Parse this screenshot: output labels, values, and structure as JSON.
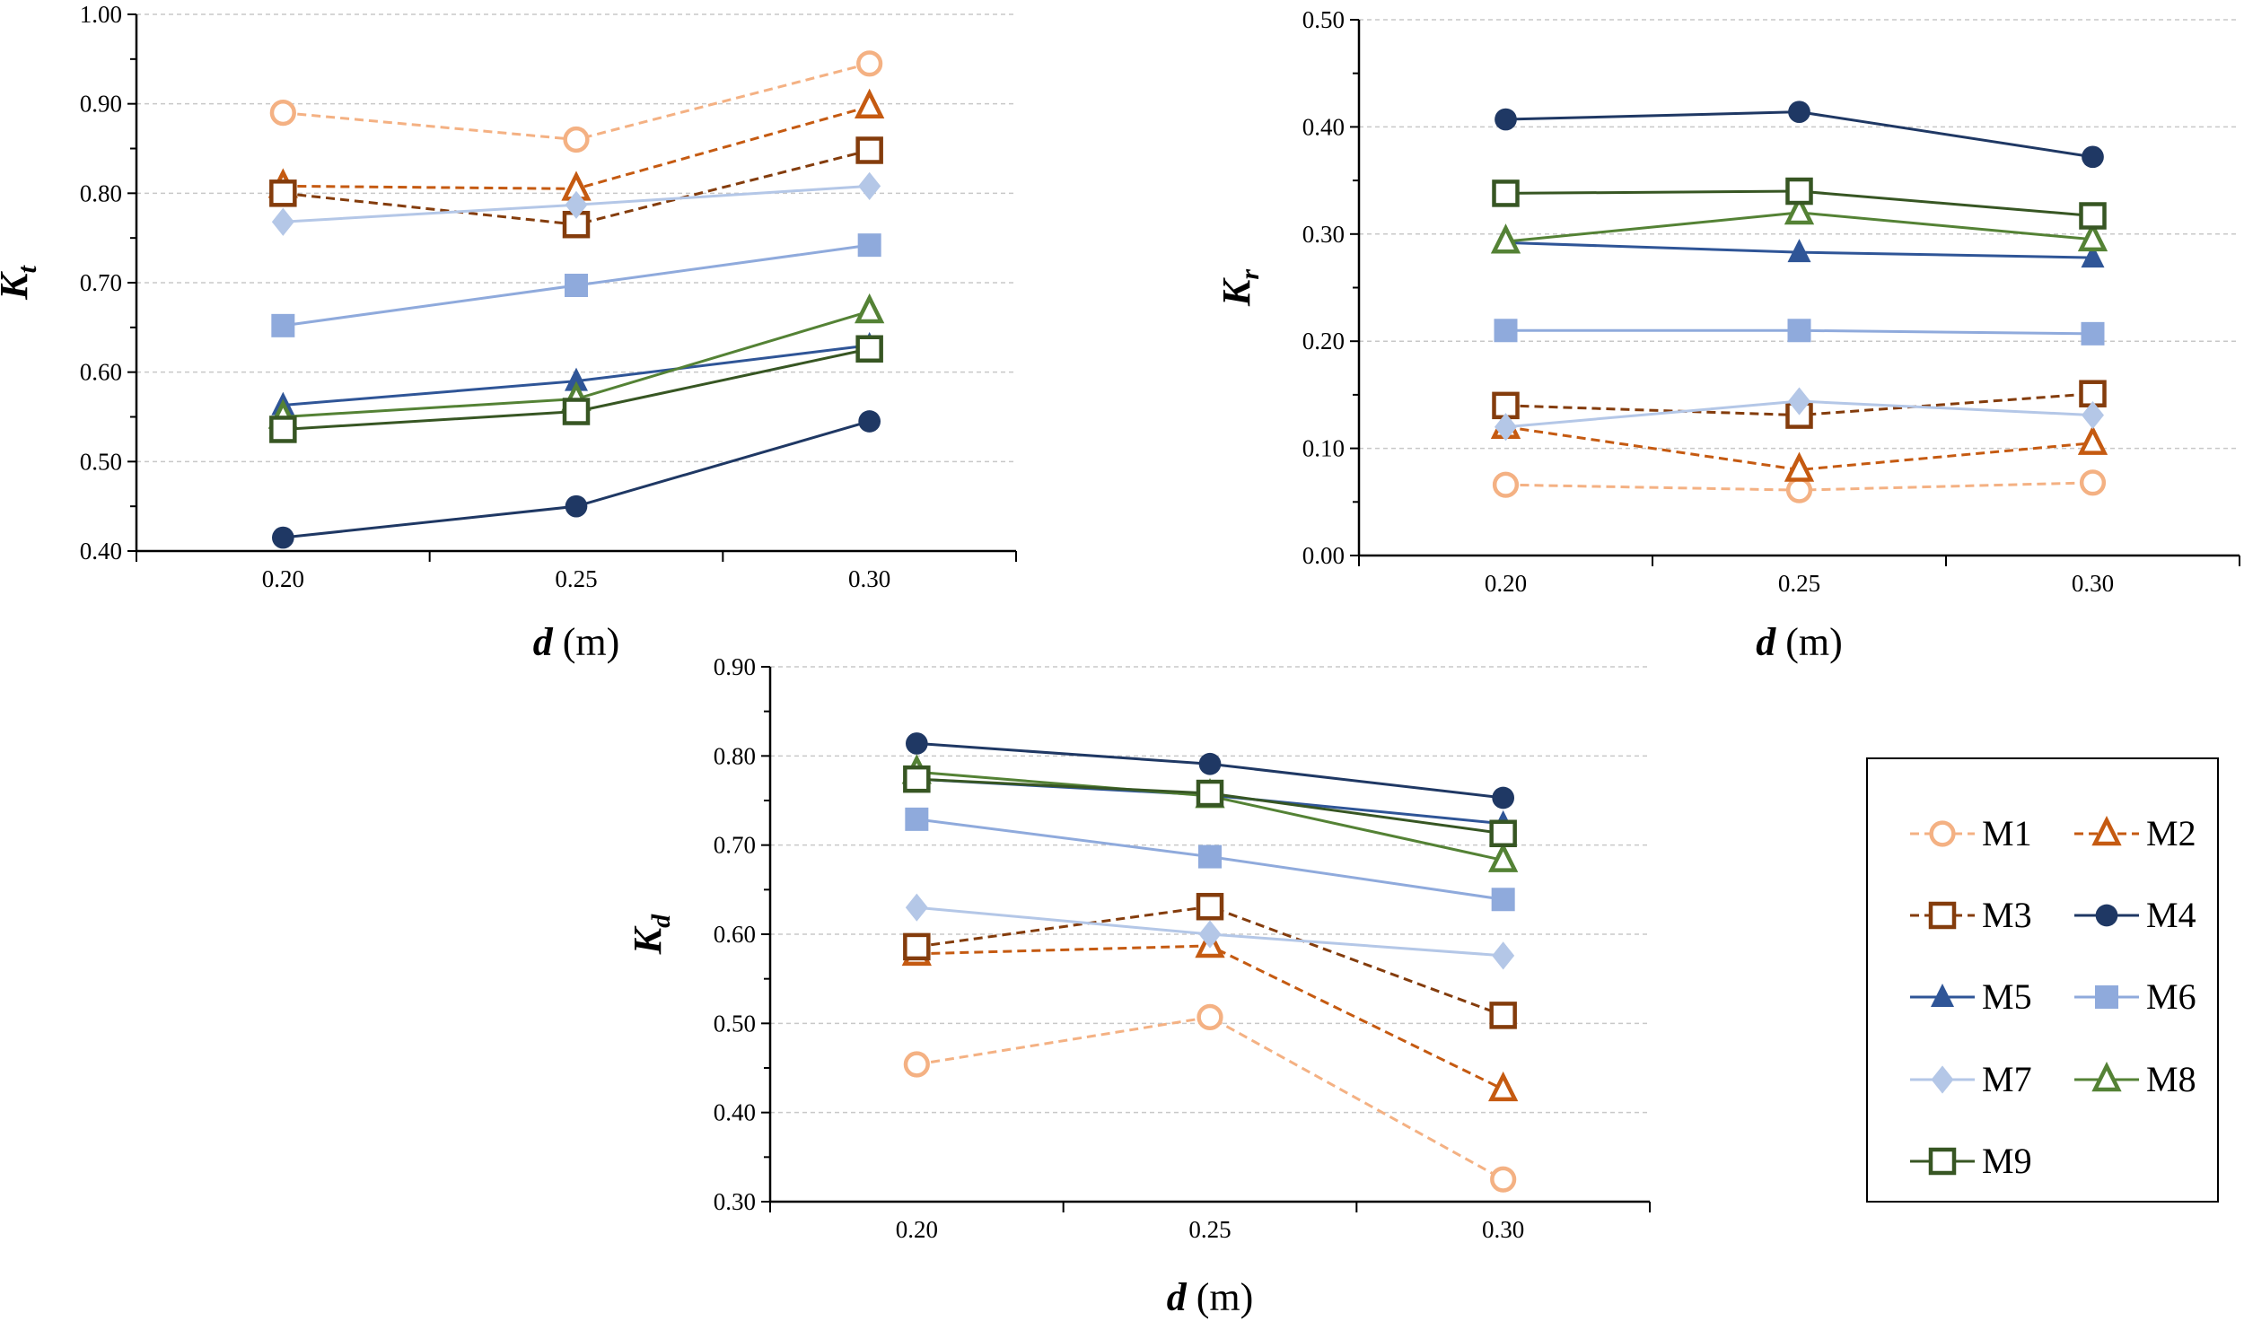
{
  "series_styles": [
    {
      "name": "M1",
      "color": "#F4B183",
      "marker": "circle",
      "filled": false,
      "dashed": true
    },
    {
      "name": "M2",
      "color": "#C55A11",
      "marker": "triangle",
      "filled": false,
      "dashed": true
    },
    {
      "name": "M3",
      "color": "#843C0C",
      "marker": "square",
      "filled": false,
      "dashed": true
    },
    {
      "name": "M4",
      "color": "#1F3864",
      "marker": "circle",
      "filled": true,
      "dashed": false
    },
    {
      "name": "M5",
      "color": "#2F5597",
      "marker": "triangle",
      "filled": true,
      "dashed": false
    },
    {
      "name": "M6",
      "color": "#8FAADC",
      "marker": "square",
      "filled": true,
      "dashed": false
    },
    {
      "name": "M7",
      "color": "#B4C7E7",
      "marker": "diamond",
      "filled": true,
      "dashed": false
    },
    {
      "name": "M8",
      "color": "#548235",
      "marker": "triangle",
      "filled": false,
      "dashed": false
    },
    {
      "name": "M9",
      "color": "#375623",
      "marker": "square",
      "filled": false,
      "dashed": false
    }
  ],
  "chart_data": [
    {
      "type": "line",
      "id": "kt",
      "categories": [
        "0.20",
        "0.25",
        "0.30"
      ],
      "xlabel_main": "d",
      "xlabel_unit": " (m)",
      "ylabel_main": "K",
      "ylabel_sub": "t",
      "ylim": [
        0.4,
        1.0
      ],
      "ystep": 0.1,
      "yticks": [
        "0.40",
        "0.50",
        "0.60",
        "0.70",
        "0.80",
        "0.90",
        "1.00"
      ],
      "grid": true,
      "series": [
        {
          "name": "M1",
          "values": [
            0.89,
            0.86,
            0.945
          ]
        },
        {
          "name": "M2",
          "values": [
            0.808,
            0.805,
            0.897
          ]
        },
        {
          "name": "M3",
          "values": [
            0.8,
            0.765,
            0.848
          ]
        },
        {
          "name": "M4",
          "values": [
            0.415,
            0.45,
            0.545
          ]
        },
        {
          "name": "M5",
          "values": [
            0.563,
            0.59,
            0.63
          ]
        },
        {
          "name": "M6",
          "values": [
            0.652,
            0.697,
            0.742
          ]
        },
        {
          "name": "M7",
          "values": [
            0.768,
            0.787,
            0.808
          ]
        },
        {
          "name": "M8",
          "values": [
            0.55,
            0.57,
            0.668
          ]
        },
        {
          "name": "M9",
          "values": [
            0.536,
            0.556,
            0.626
          ]
        }
      ]
    },
    {
      "type": "line",
      "id": "kr",
      "categories": [
        "0.20",
        "0.25",
        "0.30"
      ],
      "xlabel_main": "d",
      "xlabel_unit": " (m)",
      "ylabel_main": "K",
      "ylabel_sub": "r",
      "ylim": [
        0.0,
        0.5
      ],
      "ystep": 0.1,
      "yticks": [
        "0.00",
        "0.10",
        "0.20",
        "0.30",
        "0.40",
        "0.50"
      ],
      "grid": true,
      "series": [
        {
          "name": "M1",
          "values": [
            0.066,
            0.061,
            0.068
          ]
        },
        {
          "name": "M2",
          "values": [
            0.12,
            0.08,
            0.105
          ]
        },
        {
          "name": "M3",
          "values": [
            0.14,
            0.131,
            0.151
          ]
        },
        {
          "name": "M4",
          "values": [
            0.407,
            0.414,
            0.372
          ]
        },
        {
          "name": "M5",
          "values": [
            0.292,
            0.283,
            0.278
          ]
        },
        {
          "name": "M6",
          "values": [
            0.21,
            0.21,
            0.207
          ]
        },
        {
          "name": "M7",
          "values": [
            0.12,
            0.144,
            0.131
          ]
        },
        {
          "name": "M8",
          "values": [
            0.293,
            0.32,
            0.295
          ]
        },
        {
          "name": "M9",
          "values": [
            0.338,
            0.34,
            0.317
          ]
        }
      ]
    },
    {
      "type": "line",
      "id": "kd",
      "categories": [
        "0.20",
        "0.25",
        "0.30"
      ],
      "xlabel_main": "d",
      "xlabel_unit": " (m)",
      "ylabel_main": "K",
      "ylabel_sub": "d",
      "ylim": [
        0.3,
        0.9
      ],
      "ystep": 0.1,
      "yticks": [
        "0.30",
        "0.40",
        "0.50",
        "0.60",
        "0.70",
        "0.80",
        "0.90"
      ],
      "grid": true,
      "series": [
        {
          "name": "M1",
          "values": [
            0.454,
            0.507,
            0.325
          ]
        },
        {
          "name": "M2",
          "values": [
            0.578,
            0.587,
            0.426
          ]
        },
        {
          "name": "M3",
          "values": [
            0.586,
            0.631,
            0.509
          ]
        },
        {
          "name": "M4",
          "values": [
            0.814,
            0.791,
            0.753
          ]
        },
        {
          "name": "M5",
          "values": [
            0.774,
            0.756,
            0.724
          ]
        },
        {
          "name": "M6",
          "values": [
            0.729,
            0.687,
            0.639
          ]
        },
        {
          "name": "M7",
          "values": [
            0.63,
            0.6,
            0.576
          ]
        },
        {
          "name": "M8",
          "values": [
            0.782,
            0.755,
            0.683
          ]
        },
        {
          "name": "M9",
          "values": [
            0.774,
            0.758,
            0.713
          ]
        }
      ]
    }
  ],
  "legend": {
    "placement": "bottom-right",
    "entries": [
      "M1",
      "M2",
      "M3",
      "M4",
      "M5",
      "M6",
      "M7",
      "M8",
      "M9"
    ]
  }
}
